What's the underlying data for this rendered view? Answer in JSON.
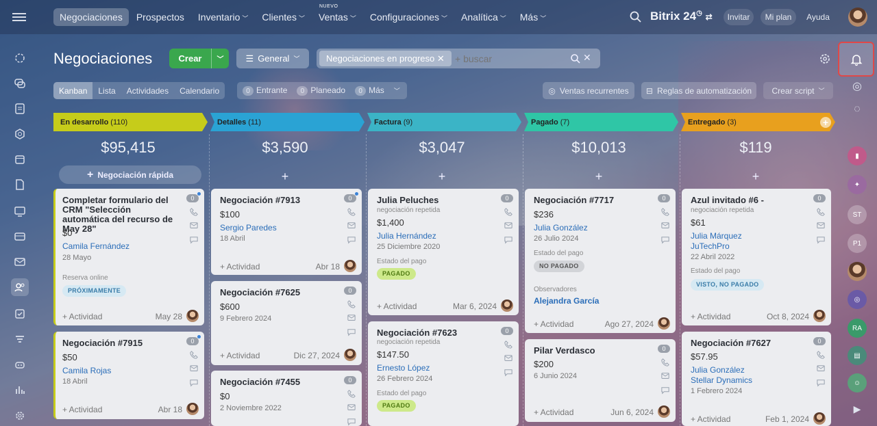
{
  "topbar": {
    "nav": [
      {
        "label": "Negociaciones",
        "active": true,
        "chevron": false
      },
      {
        "label": "Prospectos",
        "chevron": false
      },
      {
        "label": "Inventario",
        "chevron": true
      },
      {
        "label": "Clientes",
        "chevron": true
      },
      {
        "label": "Ventas",
        "chevron": true,
        "new_badge": "NUEVO"
      },
      {
        "label": "Configuraciones",
        "chevron": true
      },
      {
        "label": "Analítica",
        "chevron": true
      },
      {
        "label": "Más",
        "chevron": true
      }
    ],
    "brand": "Bitrix 24",
    "invite": "Invitar",
    "my_plan": "Mi plan",
    "help": "Ayuda"
  },
  "header": {
    "title": "Negociaciones",
    "create_label": "Crear",
    "general_label": "General",
    "filter_tag": "Negociaciones en progreso",
    "search_placeholder": "+ buscar"
  },
  "subbar": {
    "views": [
      {
        "label": "Kanban",
        "active": true
      },
      {
        "label": "Lista"
      },
      {
        "label": "Actividades"
      },
      {
        "label": "Calendario"
      }
    ],
    "counters": [
      {
        "count": "0",
        "label": "Entrante"
      },
      {
        "count": "0",
        "label": "Planeado"
      },
      {
        "count": "0",
        "label": "Más"
      }
    ],
    "recurring": "Ventas recurrentes",
    "automation": "Reglas de automatización",
    "script": "Crear script"
  },
  "columns": [
    {
      "name": "En desarrollo",
      "count": "(110)",
      "sum": "$95,415",
      "quick": "Negociación rápida",
      "color": "#c6cc1a"
    },
    {
      "name": "Detalles",
      "count": "(11)",
      "sum": "$3,590",
      "quick": "+",
      "color": "#2aa3d4"
    },
    {
      "name": "Factura",
      "count": "(9)",
      "sum": "$3,047",
      "quick": "+",
      "color": "#3bb4c6"
    },
    {
      "name": "Pagado",
      "count": "(7)",
      "sum": "$10,013",
      "quick": "+",
      "color": "#2fc6a6"
    },
    {
      "name": "Entregado",
      "count": "(3)",
      "sum": "$119",
      "quick": "+",
      "color": "#e8a01e"
    }
  ],
  "cards": {
    "c1": {
      "title": "Completar formulario del CRM \"Selección automática del recurso de May 28\"",
      "money": "$0",
      "contact": "Camila Fernández",
      "date": "28 Mayo",
      "field": "Reserva online",
      "badge": "PRÓXIMAMENTE",
      "activity": "+ Actividad",
      "adate": "May 28",
      "num": "0"
    },
    "c2": {
      "title": "Negociación #7915",
      "money": "$50",
      "contact": "Camila Rojas",
      "date": "18 Abril",
      "activity": "+ Actividad",
      "adate": "Abr 18",
      "num": "0"
    },
    "c3": {
      "title": "Negociación #7913",
      "money": "$100",
      "contact": "Sergio Paredes",
      "date": "18 Abril",
      "activity": "+ Actividad",
      "adate": "Abr 18",
      "num": "0"
    },
    "c4": {
      "title": "Negociación #7625",
      "money": "$600",
      "date": "9 Febrero 2024",
      "activity": "+ Actividad",
      "adate": "Dic 27, 2024",
      "num": "0"
    },
    "c5": {
      "title": "Negociación #7455",
      "money": "$0",
      "date": "2 Noviembre 2022",
      "num": "0"
    },
    "c6": {
      "title": "Julia Peluches",
      "sub": "negociación repetida",
      "money": "$1,400",
      "contact": "Julia Hernández",
      "date": "25 Diciembre 2020",
      "field": "Estado del pago",
      "badge": "PAGADO",
      "activity": "+ Actividad",
      "adate": "Mar 6, 2024",
      "num": "0"
    },
    "c7": {
      "title": "Negociación #7623",
      "sub": "negociación repetida",
      "money": "$147.50",
      "contact": "Ernesto López",
      "date": "26 Febrero 2024",
      "field": "Estado del pago",
      "badge": "PAGADO",
      "num": "0"
    },
    "c8": {
      "title": "Negociación #7717",
      "money": "$236",
      "contact": "Julia González",
      "date": "26 Julio 2024",
      "field": "Estado del pago",
      "badge": "NO PAGADO",
      "observers": "Observadores",
      "observer": "Alejandra García",
      "activity": "+ Actividad",
      "adate": "Ago 27, 2024",
      "num": "0"
    },
    "c9": {
      "title": "Pilar Verdasco",
      "money": "$200",
      "date": "6 Junio 2024",
      "activity": "+ Actividad",
      "adate": "Jun 6, 2024",
      "num": "0"
    },
    "c10": {
      "title": "Azul invitado #6 -",
      "sub": "negociación repetida",
      "money": "$61",
      "contact": "Julia Márquez",
      "company": "JuTechPro",
      "date": "22 Abril 2022",
      "field": "Estado del pago",
      "badge": "VISTO, NO PAGADO",
      "activity": "+ Actividad",
      "adate": "Oct 8, 2024",
      "num": "0"
    },
    "c11": {
      "title": "Negociación #7627",
      "money": "$57.95",
      "contact": "Julia González",
      "company": "Stellar Dynamics",
      "date": "1 Febrero 2024",
      "activity": "+ Actividad",
      "adate": "Feb 1, 2024",
      "num": "0"
    }
  },
  "rightbar": {
    "avatars": [
      "ST",
      "P1",
      "RA"
    ]
  },
  "colors": {
    "accent_green": "#3aa74d",
    "highlight": "#e04848",
    "link": "#2a6db8"
  }
}
